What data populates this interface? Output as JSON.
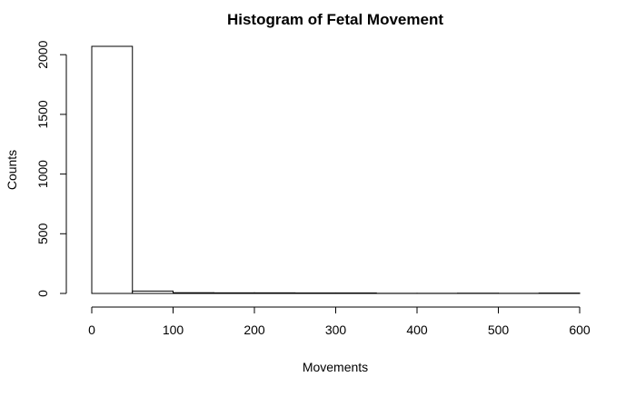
{
  "chart_data": {
    "type": "bar",
    "title": "Histogram of Fetal Movement",
    "xlabel": "Movements",
    "ylabel": "Counts",
    "x_ticks": [
      0,
      100,
      200,
      300,
      400,
      500,
      600
    ],
    "y_ticks": [
      0,
      500,
      1000,
      1500,
      2000
    ],
    "xlim": [
      0,
      600
    ],
    "ylim": [
      0,
      2070
    ],
    "bin_width": 50,
    "bins": [
      {
        "start": 0,
        "end": 50,
        "count": 2070
      },
      {
        "start": 50,
        "end": 100,
        "count": 20
      },
      {
        "start": 100,
        "end": 150,
        "count": 6
      },
      {
        "start": 150,
        "end": 200,
        "count": 5
      },
      {
        "start": 200,
        "end": 250,
        "count": 5
      },
      {
        "start": 250,
        "end": 300,
        "count": 4
      },
      {
        "start": 300,
        "end": 350,
        "count": 4
      },
      {
        "start": 350,
        "end": 400,
        "count": 1
      },
      {
        "start": 400,
        "end": 450,
        "count": 1
      },
      {
        "start": 450,
        "end": 500,
        "count": 2
      },
      {
        "start": 500,
        "end": 550,
        "count": 1
      },
      {
        "start": 550,
        "end": 600,
        "count": 3
      }
    ],
    "grid": false,
    "legend": "none",
    "bar_fill": "#ffffff",
    "bar_stroke": "#000000"
  }
}
